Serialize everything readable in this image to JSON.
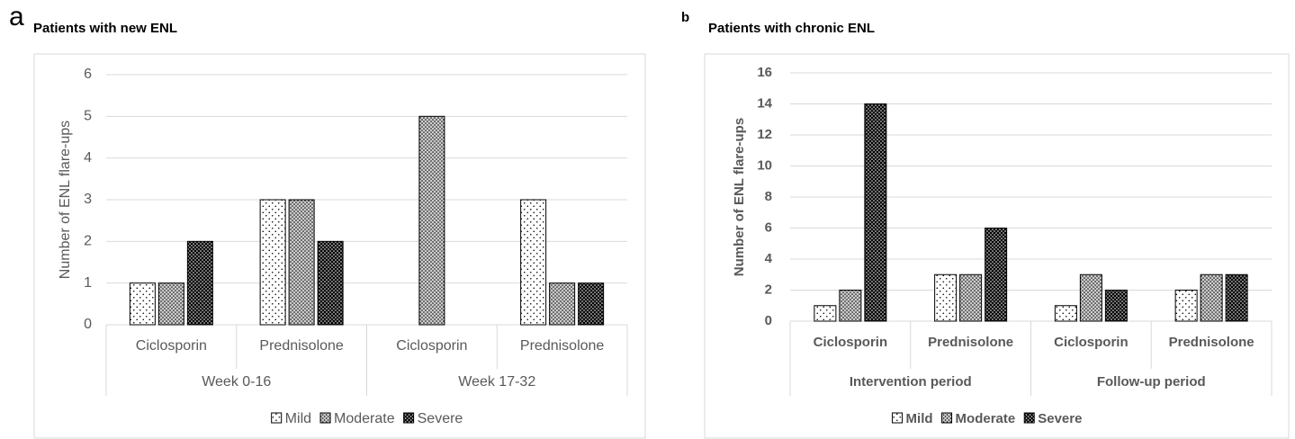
{
  "chart_data": [
    {
      "type": "bar",
      "panel": "a",
      "title": "Patients with new ENL",
      "ylabel": "Number of ENL flare-ups",
      "categories": [
        "Ciclosporin",
        "Prednisolone",
        "Ciclosporin",
        "Prednisolone"
      ],
      "groups": [
        "Week 0-16",
        "Week 17-32"
      ],
      "series": [
        {
          "name": "Mild",
          "color": "#ffffff",
          "values": [
            1,
            3,
            0,
            3
          ]
        },
        {
          "name": "Moderate",
          "color": "#cccccc",
          "values": [
            1,
            3,
            5,
            1
          ]
        },
        {
          "name": "Severe",
          "color": "#000000",
          "values": [
            2,
            2,
            0,
            1
          ]
        }
      ],
      "ylim": [
        0,
        6
      ],
      "yticks": [
        0,
        1,
        2,
        3,
        4,
        5,
        6
      ],
      "grid": true,
      "legend": "bottom"
    },
    {
      "type": "bar",
      "panel": "b",
      "title": "Patients with chronic ENL",
      "ylabel": "Number of ENL flare-ups",
      "categories": [
        "Ciclosporin",
        "Prednisolone",
        "Ciclosporin",
        "Prednisolone"
      ],
      "groups": [
        "Intervention period",
        "Follow-up period"
      ],
      "series": [
        {
          "name": "Mild",
          "color": "#ffffff",
          "values": [
            1,
            3,
            1,
            2
          ]
        },
        {
          "name": "Moderate",
          "color": "#cccccc",
          "values": [
            2,
            3,
            3,
            3
          ]
        },
        {
          "name": "Severe",
          "color": "#000000",
          "values": [
            14,
            6,
            2,
            3
          ]
        }
      ],
      "ylim": [
        0,
        16
      ],
      "yticks": [
        0,
        2,
        4,
        6,
        8,
        10,
        12,
        14,
        16
      ],
      "grid": true,
      "legend": "bottom"
    }
  ]
}
